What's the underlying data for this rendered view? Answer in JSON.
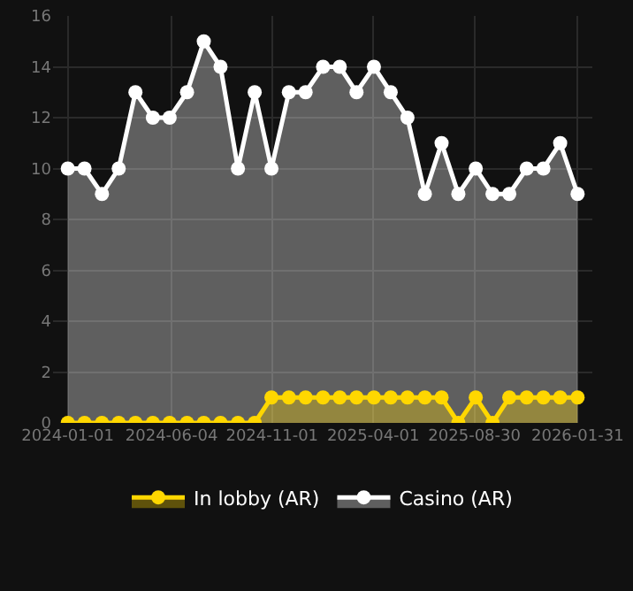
{
  "chart_data": {
    "type": "area",
    "x": [
      "2024-01-01",
      "2024-01-26",
      "2024-02-21",
      "2024-03-17",
      "2024-04-11",
      "2024-05-07",
      "2024-06-01",
      "2024-06-27",
      "2024-07-22",
      "2024-08-16",
      "2024-09-11",
      "2024-10-06",
      "2024-10-31",
      "2024-11-26",
      "2024-12-21",
      "2025-01-16",
      "2025-02-10",
      "2025-03-07",
      "2025-04-02",
      "2025-04-27",
      "2025-05-22",
      "2025-06-17",
      "2025-07-12",
      "2025-08-06",
      "2025-09-01",
      "2025-09-26",
      "2025-10-21",
      "2025-11-16",
      "2025-12-11",
      "2026-01-05",
      "2026-01-31"
    ],
    "series": [
      {
        "name": "Casino (AR)",
        "color": "#ffffff",
        "values": [
          10,
          10,
          9,
          10,
          13,
          12,
          12,
          13,
          15,
          14,
          10,
          13,
          10,
          13,
          13,
          14,
          14,
          13,
          14,
          13,
          12,
          9,
          11,
          9,
          10,
          9,
          9,
          10,
          10,
          11,
          9
        ]
      },
      {
        "name": "In lobby (AR)",
        "color": "#ffd700",
        "values": [
          0,
          0,
          0,
          0,
          0,
          0,
          0,
          0,
          0,
          0,
          0,
          0,
          1,
          1,
          1,
          1,
          1,
          1,
          1,
          1,
          1,
          1,
          1,
          0,
          1,
          0,
          1,
          1,
          1,
          1,
          1
        ]
      }
    ],
    "xlim": [
      "2023-12-10",
      "2026-02-22"
    ],
    "xticks": [
      "2024-01-01",
      "2024-06-04",
      "2024-11-01",
      "2025-04-01",
      "2025-08-30",
      "2026-01-31"
    ],
    "ylim": [
      0,
      16
    ],
    "yticks": [
      0,
      2,
      4,
      6,
      8,
      10,
      12,
      14,
      16
    ],
    "grid": true,
    "legend": "bottom",
    "marker": "circle",
    "line_style": "solid"
  }
}
